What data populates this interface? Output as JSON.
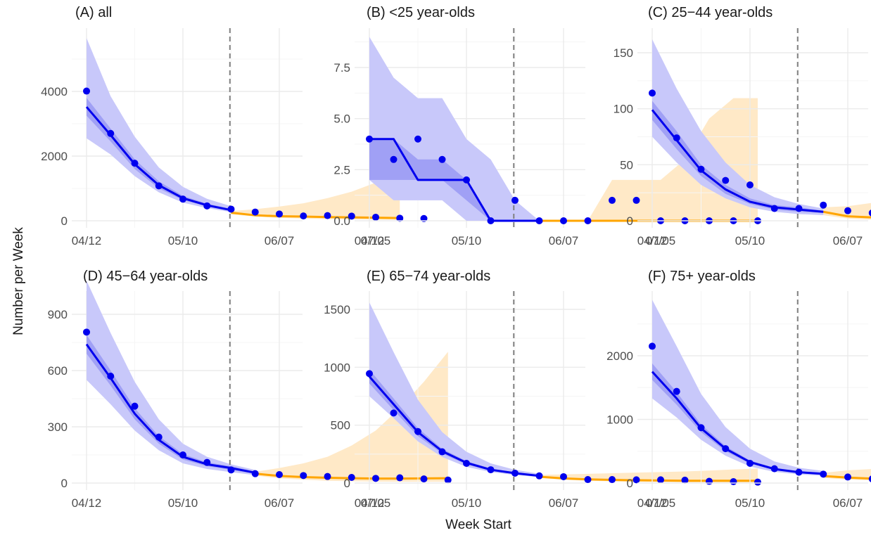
{
  "figure": {
    "ylabel": "Number per Week",
    "xlabel": "Week Start"
  },
  "colors": {
    "observed_points": "#0000ee",
    "fit_line": "#0000ee",
    "fit_band_inner": "#8080f0",
    "fit_band_outer": "#c8c8fa",
    "forecast_line": "#ffa500",
    "forecast_band": "#ffe9c7",
    "split_line": "#808080",
    "grid_major": "#ebebeb",
    "grid_minor": "#f5f5f5"
  },
  "chart_data": [
    {
      "type": "line",
      "title": "(A) all",
      "x_tick_labels": [
        "04/12",
        "05/10",
        "06/07",
        "07/05"
      ],
      "y_ticks": [
        0,
        2000,
        4000
      ],
      "y_tick_labels": [
        "0",
        "2000",
        "4000"
      ],
      "ylim": [
        0,
        5700
      ],
      "split_week": 6,
      "observed": {
        "week": [
          0,
          1,
          2,
          3,
          4,
          5,
          6,
          7,
          8,
          9,
          10,
          11,
          12,
          13,
          14
        ],
        "values": [
          4010,
          2700,
          1780,
          1080,
          670,
          460,
          360,
          270,
          210,
          150,
          160,
          145,
          110,
          80,
          70
        ]
      },
      "fit": {
        "week": [
          0,
          1,
          2,
          3,
          4,
          5,
          6
        ],
        "median": [
          3520,
          2650,
          1750,
          1100,
          700,
          480,
          330
        ],
        "inner_low": [
          3250,
          2450,
          1600,
          1000,
          640,
          440,
          300
        ],
        "inner_high": [
          3800,
          2850,
          1900,
          1220,
          770,
          530,
          370
        ],
        "outer_low": [
          2550,
          2050,
          1380,
          880,
          560,
          390,
          270
        ],
        "outer_high": [
          5650,
          3850,
          2600,
          1650,
          1050,
          680,
          450
        ]
      },
      "forecast": {
        "week": [
          6,
          7,
          8,
          9,
          10,
          11,
          12,
          13
        ],
        "median": [
          250,
          170,
          140,
          130,
          115,
          105,
          95,
          85
        ],
        "low": [
          200,
          130,
          90,
          70,
          55,
          45,
          35,
          30
        ],
        "high": [
          300,
          360,
          440,
          540,
          700,
          900,
          1180,
          1550
        ]
      }
    },
    {
      "type": "line",
      "title": "(B) <25 year-olds",
      "x_tick_labels": [
        "04/12",
        "05/10",
        "06/07",
        "07/05"
      ],
      "y_ticks": [
        0,
        2.5,
        5,
        7.5
      ],
      "y_tick_labels": [
        "0.0",
        "2.5",
        "5.0",
        "7.5"
      ],
      "ylim": [
        0,
        9.5
      ],
      "split_week": 6,
      "observed": {
        "week": [
          0,
          1,
          2,
          3,
          4,
          5,
          6,
          7,
          8,
          9,
          10,
          11,
          12,
          13,
          14,
          15,
          16
        ],
        "values": [
          4,
          3,
          4,
          3,
          2,
          0,
          1,
          0,
          0,
          0,
          1,
          1,
          0,
          0,
          0,
          0,
          0
        ]
      },
      "fit": {
        "week": [
          0,
          1,
          2,
          3,
          4,
          5,
          6,
          7
        ],
        "median": [
          4,
          4,
          2,
          2,
          2,
          0,
          0,
          0
        ],
        "inner_low": [
          2,
          2,
          2,
          2,
          1,
          0,
          0,
          0
        ],
        "inner_high": [
          4,
          4,
          3,
          3,
          2,
          0,
          0,
          0
        ],
        "outer_low": [
          2,
          1,
          1,
          1,
          0,
          0,
          0,
          0
        ],
        "outer_high": [
          9,
          7,
          6,
          6,
          4,
          3,
          1,
          0
        ]
      },
      "forecast": {
        "week": [
          7,
          8,
          9,
          10,
          11,
          12,
          13,
          14,
          15,
          16
        ],
        "median": [
          0,
          0,
          0,
          0,
          0,
          0,
          0,
          0,
          0,
          0
        ],
        "low": [
          0,
          0,
          0,
          0,
          0,
          0,
          0,
          0,
          0,
          0
        ],
        "high": [
          0,
          0,
          0,
          2,
          2,
          2,
          3,
          5,
          6,
          6
        ]
      }
    },
    {
      "type": "line",
      "title": "(C) 25−44 year-olds",
      "x_tick_labels": [
        "04/12",
        "05/10",
        "06/07",
        "07/05"
      ],
      "y_ticks": [
        0,
        50,
        100,
        150
      ],
      "y_tick_labels": [
        "0",
        "50",
        "100",
        "150"
      ],
      "ylim": [
        0,
        165
      ],
      "split_week": 6,
      "observed": {
        "week": [
          0,
          1,
          2,
          3,
          4,
          5,
          6,
          7,
          8,
          9,
          10,
          11,
          12,
          13,
          14,
          15
        ],
        "values": [
          114,
          74,
          46,
          36,
          32,
          11,
          11,
          14,
          9,
          7,
          8,
          7,
          5,
          5,
          1,
          3
        ]
      },
      "fit": {
        "week": [
          0,
          1,
          2,
          3,
          4,
          5,
          6,
          7
        ],
        "median": [
          99,
          72,
          45,
          28,
          17,
          12,
          10,
          8
        ],
        "inner_low": [
          90,
          64,
          40,
          24,
          15,
          10,
          8,
          7
        ],
        "inner_high": [
          107,
          80,
          50,
          32,
          20,
          14,
          12,
          9
        ],
        "outer_low": [
          75,
          52,
          32,
          20,
          12,
          8,
          6,
          5
        ],
        "outer_high": [
          162,
          118,
          80,
          52,
          32,
          21,
          15,
          11
        ]
      },
      "forecast": {
        "week": [
          7,
          8,
          9,
          10,
          11,
          12,
          13,
          14,
          15
        ],
        "median": [
          8,
          4,
          3,
          2,
          2,
          2,
          2,
          3,
          4
        ],
        "low": [
          5,
          2,
          1,
          1,
          1,
          1,
          1,
          1,
          1
        ],
        "high": [
          12,
          13,
          16,
          21,
          29,
          40,
          55,
          72,
          92
        ]
      }
    },
    {
      "type": "line",
      "title": "(D) 45−64 year-olds",
      "x_tick_labels": [
        "04/12",
        "05/10",
        "06/07",
        "07/05"
      ],
      "y_ticks": [
        0,
        300,
        600,
        900
      ],
      "y_tick_labels": [
        "0",
        "300",
        "600",
        "900"
      ],
      "ylim": [
        0,
        1110
      ],
      "split_week": 6,
      "observed": {
        "week": [
          0,
          1,
          2,
          3,
          4,
          5,
          6,
          7,
          8,
          9,
          10,
          11,
          12,
          13,
          14,
          15
        ],
        "values": [
          805,
          570,
          410,
          245,
          150,
          110,
          70,
          50,
          45,
          40,
          35,
          30,
          25,
          28,
          22,
          16
        ]
      },
      "fit": {
        "week": [
          0,
          1,
          2,
          3,
          4,
          5,
          6,
          7
        ],
        "median": [
          740,
          560,
          370,
          230,
          140,
          100,
          80,
          55
        ],
        "inner_low": [
          690,
          520,
          340,
          210,
          125,
          90,
          70,
          48
        ],
        "inner_high": [
          790,
          600,
          400,
          250,
          155,
          110,
          90,
          62
        ],
        "outer_low": [
          550,
          420,
          280,
          175,
          105,
          75,
          58,
          42
        ],
        "outer_high": [
          1080,
          800,
          540,
          340,
          210,
          140,
          100,
          70
        ]
      },
      "forecast": {
        "week": [
          7,
          8,
          9,
          10,
          11,
          12,
          13,
          14,
          15
        ],
        "median": [
          50,
          38,
          32,
          28,
          26,
          24,
          24,
          25,
          26
        ],
        "low": [
          40,
          25,
          18,
          12,
          10,
          8,
          7,
          7,
          7
        ],
        "high": [
          60,
          80,
          105,
          140,
          200,
          280,
          400,
          540,
          700
        ]
      }
    },
    {
      "type": "line",
      "title": "(E) 65−74 year-olds",
      "x_tick_labels": [
        "04/12",
        "05/10",
        "06/07",
        "07/05"
      ],
      "y_ticks": [
        0,
        500,
        1000,
        1500
      ],
      "y_tick_labels": [
        "0",
        "500",
        "1000",
        "1500"
      ],
      "ylim": [
        0,
        1640
      ],
      "split_week": 6,
      "observed": {
        "week": [
          0,
          1,
          2,
          3,
          4,
          5,
          6,
          7,
          8,
          9,
          10,
          11,
          12,
          13,
          14,
          15,
          16
        ],
        "values": [
          945,
          605,
          445,
          270,
          170,
          115,
          85,
          62,
          55,
          30,
          30,
          28,
          28,
          25,
          15,
          12,
          8
        ]
      },
      "fit": {
        "week": [
          0,
          1,
          2,
          3,
          4,
          5,
          6,
          7
        ],
        "median": [
          920,
          680,
          440,
          275,
          175,
          115,
          85,
          62
        ],
        "inner_low": [
          860,
          630,
          405,
          255,
          160,
          105,
          78,
          57
        ],
        "inner_high": [
          980,
          730,
          475,
          295,
          190,
          125,
          92,
          68
        ],
        "outer_low": [
          750,
          560,
          360,
          225,
          140,
          95,
          70,
          52
        ],
        "outer_high": [
          1560,
          1130,
          720,
          440,
          270,
          170,
          115,
          80
        ]
      },
      "forecast": {
        "week": [
          7,
          8,
          9,
          10,
          11,
          12,
          13,
          14,
          15,
          16
        ],
        "median": [
          55,
          40,
          32,
          27,
          24,
          22,
          20,
          20,
          20,
          20
        ],
        "low": [
          45,
          28,
          20,
          15,
          10,
          8,
          6,
          5,
          4,
          4
        ],
        "high": [
          70,
          75,
          80,
          85,
          90,
          95,
          100,
          108,
          118,
          125
        ]
      }
    },
    {
      "type": "line",
      "title": "(F) 75+ year-olds",
      "x_tick_labels": [
        "04/12",
        "05/10",
        "06/07",
        "07/05"
      ],
      "y_ticks": [
        0,
        1000,
        2000
      ],
      "y_tick_labels": [
        "0",
        "1000",
        "2000"
      ],
      "ylim": [
        0,
        2950
      ],
      "split_week": 6,
      "observed": {
        "week": [
          0,
          1,
          2,
          3,
          4,
          5,
          6,
          7,
          8,
          9,
          10,
          11,
          12,
          13,
          14,
          15
        ],
        "values": [
          2150,
          1440,
          870,
          540,
          310,
          225,
          170,
          140,
          95,
          65,
          80,
          75,
          45,
          50,
          40,
          30
        ]
      },
      "fit": {
        "week": [
          0,
          1,
          2,
          3,
          4,
          5,
          6,
          7
        ],
        "median": [
          1750,
          1330,
          860,
          540,
          330,
          220,
          170,
          145
        ],
        "inner_low": [
          1620,
          1230,
          800,
          500,
          305,
          205,
          155,
          130
        ],
        "inner_high": [
          1880,
          1430,
          920,
          580,
          355,
          240,
          185,
          160
        ],
        "outer_low": [
          1330,
          1030,
          680,
          430,
          260,
          175,
          135,
          115
        ],
        "outer_high": [
          2880,
          2150,
          1400,
          880,
          540,
          340,
          240,
          190
        ]
      },
      "forecast": {
        "week": [
          7,
          8,
          9,
          10,
          11,
          12,
          13,
          14,
          15
        ],
        "median": [
          110,
          85,
          70,
          60,
          52,
          46,
          42,
          40,
          38
        ],
        "low": [
          80,
          55,
          40,
          30,
          22,
          18,
          14,
          12,
          10
        ],
        "high": [
          160,
          200,
          220,
          260,
          310,
          370,
          440,
          520,
          610
        ]
      }
    }
  ]
}
